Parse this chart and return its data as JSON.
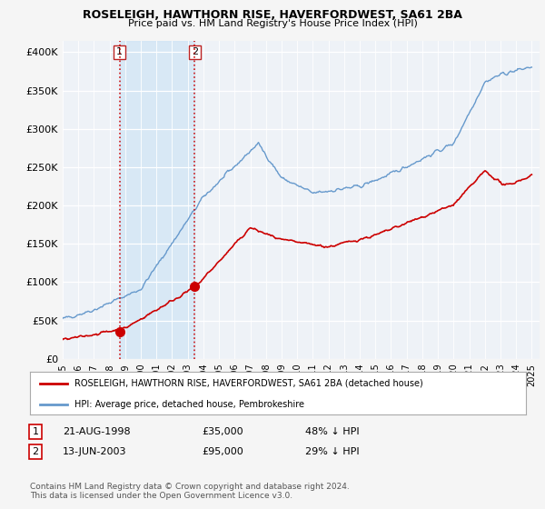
{
  "title": "ROSELEIGH, HAWTHORN RISE, HAVERFORDWEST, SA61 2BA",
  "subtitle": "Price paid vs. HM Land Registry's House Price Index (HPI)",
  "ytick_values": [
    0,
    50000,
    100000,
    150000,
    200000,
    250000,
    300000,
    350000,
    400000
  ],
  "ylim": [
    0,
    415000
  ],
  "xlim_start": 1995.0,
  "xlim_end": 2025.5,
  "background_color": "#f5f5f5",
  "plot_bg_color": "#f0f0f0",
  "grid_color": "#d0d8e0",
  "red_line_color": "#cc0000",
  "blue_line_color": "#6699cc",
  "sale1_x": 1998.64,
  "sale1_y": 35000,
  "sale2_x": 2003.45,
  "sale2_y": 95000,
  "dashed_line_color": "#cc0000",
  "shade_color": "#d0e4f5",
  "legend_label_red": "ROSELEIGH, HAWTHORN RISE, HAVERFORDWEST, SA61 2BA (detached house)",
  "legend_label_blue": "HPI: Average price, detached house, Pembrokeshire",
  "table_row1": [
    "1",
    "21-AUG-1998",
    "£35,000",
    "48% ↓ HPI"
  ],
  "table_row2": [
    "2",
    "13-JUN-2003",
    "£95,000",
    "29% ↓ HPI"
  ],
  "footnote": "Contains HM Land Registry data © Crown copyright and database right 2024.\nThis data is licensed under the Open Government Licence v3.0.",
  "xtick_years": [
    1995,
    1996,
    1997,
    1998,
    1999,
    2000,
    2001,
    2002,
    2003,
    2004,
    2005,
    2006,
    2007,
    2008,
    2009,
    2010,
    2011,
    2012,
    2013,
    2014,
    2015,
    2016,
    2017,
    2018,
    2019,
    2020,
    2021,
    2022,
    2023,
    2024,
    2025
  ]
}
